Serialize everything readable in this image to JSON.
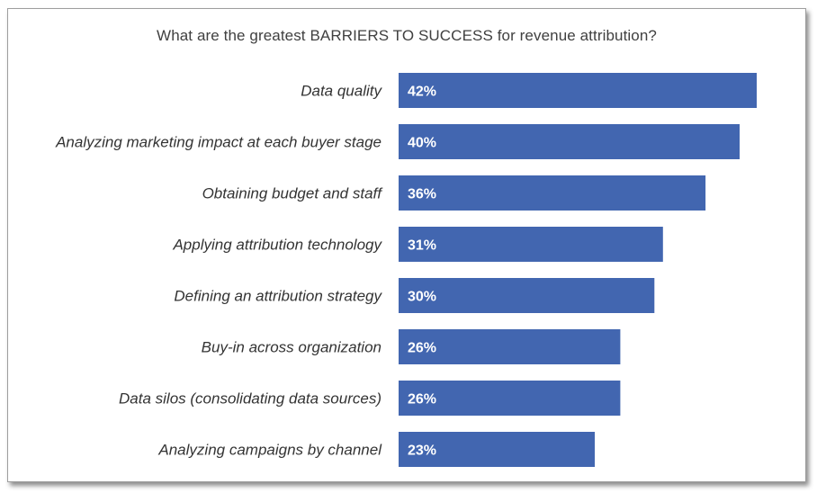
{
  "chart_data": {
    "type": "bar",
    "orientation": "horizontal",
    "title": "What are the greatest BARRIERS TO SUCCESS for revenue attribution?",
    "categories": [
      "Data quality",
      "Analyzing marketing impact at each buyer stage",
      "Obtaining budget and staff",
      "Applying attribution technology",
      "Defining an attribution strategy",
      "Buy-in across organization",
      "Data silos (consolidating data sources)",
      "Analyzing campaigns by channel"
    ],
    "values": [
      42,
      40,
      36,
      31,
      30,
      26,
      26,
      23
    ],
    "value_labels": [
      "42%",
      "40%",
      "36%",
      "31%",
      "30%",
      "26%",
      "26%",
      "23%"
    ],
    "unit": "%",
    "xlim": [
      0,
      42
    ],
    "grid": false,
    "legend": "none",
    "bar_color": "#4266b0",
    "label_color": "#ffffff"
  }
}
